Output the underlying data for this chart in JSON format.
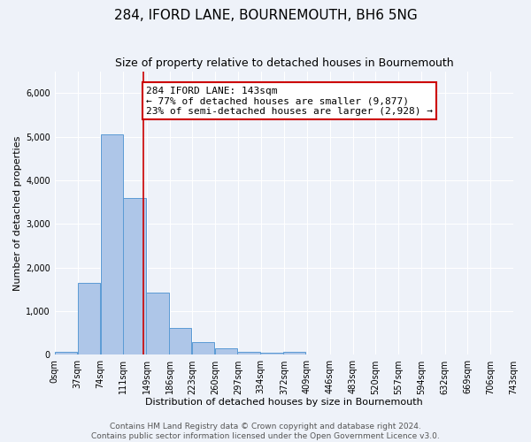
{
  "title": "284, IFORD LANE, BOURNEMOUTH, BH6 5NG",
  "subtitle": "Size of property relative to detached houses in Bournemouth",
  "xlabel": "Distribution of detached houses by size in Bournemouth",
  "ylabel": "Number of detached properties",
  "bar_left_edges": [
    0,
    37,
    74,
    111,
    148,
    185,
    222,
    259,
    296,
    333,
    370,
    407,
    444,
    481,
    518,
    555,
    592,
    629,
    666,
    703
  ],
  "bar_heights": [
    75,
    1650,
    5050,
    3600,
    1425,
    615,
    300,
    150,
    75,
    50,
    75,
    0,
    0,
    0,
    0,
    0,
    0,
    0,
    0,
    0
  ],
  "bin_width": 37,
  "bar_color": "#aec6e8",
  "bar_edge_color": "#5b9bd5",
  "marker_x": 143,
  "marker_color": "#cc0000",
  "annotation_text": "284 IFORD LANE: 143sqm\n← 77% of detached houses are smaller (9,877)\n23% of semi-detached houses are larger (2,928) →",
  "annotation_box_color": "#ffffff",
  "annotation_box_edge": "#cc0000",
  "ylim": [
    0,
    6500
  ],
  "xlim": [
    0,
    743
  ],
  "tick_labels": [
    "0sqm",
    "37sqm",
    "74sqm",
    "111sqm",
    "149sqm",
    "186sqm",
    "223sqm",
    "260sqm",
    "297sqm",
    "334sqm",
    "372sqm",
    "409sqm",
    "446sqm",
    "483sqm",
    "520sqm",
    "557sqm",
    "594sqm",
    "632sqm",
    "669sqm",
    "706sqm",
    "743sqm"
  ],
  "tick_positions": [
    0,
    37,
    74,
    111,
    149,
    186,
    223,
    260,
    297,
    334,
    372,
    409,
    446,
    483,
    520,
    557,
    594,
    632,
    669,
    706,
    743
  ],
  "footer1": "Contains HM Land Registry data © Crown copyright and database right 2024.",
  "footer2": "Contains public sector information licensed under the Open Government Licence v3.0.",
  "bg_color": "#eef2f9",
  "grid_color": "#ffffff",
  "title_fontsize": 11,
  "subtitle_fontsize": 9,
  "axis_label_fontsize": 8,
  "tick_fontsize": 7,
  "footer_fontsize": 6.5,
  "annot_fontsize": 8
}
